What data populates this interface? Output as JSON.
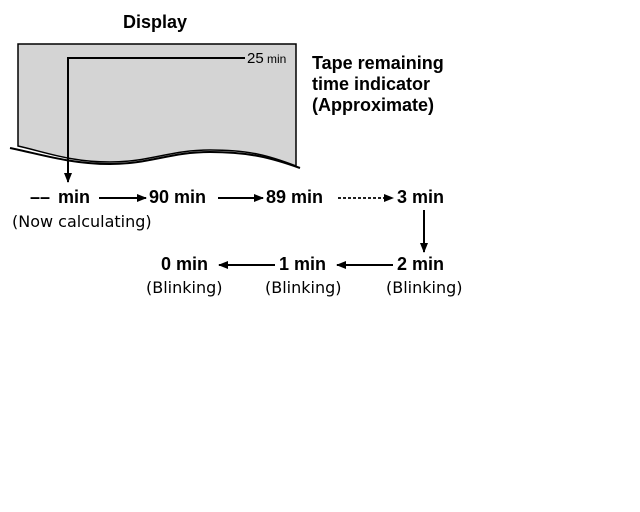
{
  "display": {
    "title": "Display",
    "counter_value": "25",
    "counter_unit": "min",
    "panel_color": "#d4d4d4"
  },
  "indicator_label": {
    "line1": "Tape remaining",
    "line2": "time indicator",
    "line3": "(Approximate)"
  },
  "sequence": {
    "row1": [
      {
        "label": "min",
        "prefix": "––",
        "note": "(Now calculating)"
      },
      {
        "label": "90 min",
        "note": ""
      },
      {
        "label": "89 min",
        "note": ""
      },
      {
        "label": "3 min",
        "note": ""
      }
    ],
    "row2": [
      {
        "label": "2 min",
        "note": "(Blinking)"
      },
      {
        "label": "1 min",
        "note": "(Blinking)"
      },
      {
        "label": "0 min",
        "note": "(Blinking)"
      }
    ]
  }
}
